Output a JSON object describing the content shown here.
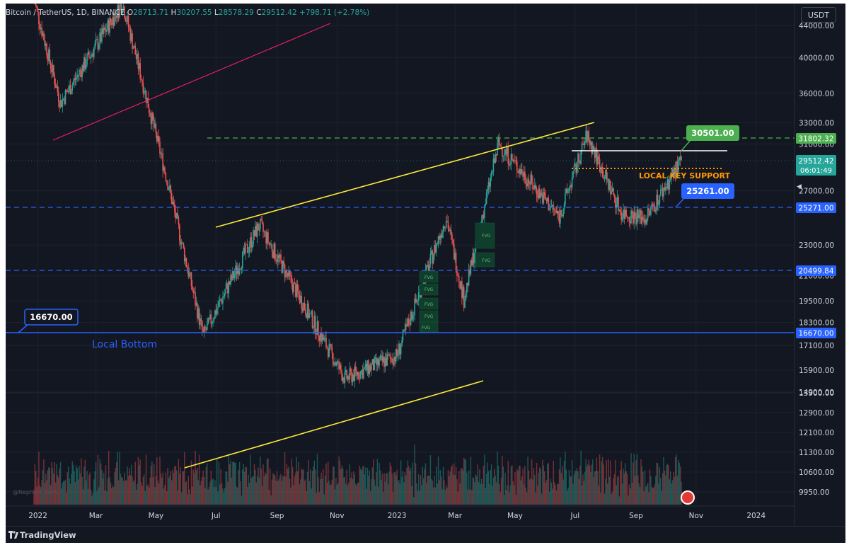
{
  "header": {
    "symbol": "Bitcoin / TetherUS, 1D, BINANCE",
    "o_label": "O",
    "o_value": "28713.71",
    "h_label": "H",
    "h_value": "30207.55",
    "l_label": "L",
    "l_value": "28578.29",
    "c_label": "C",
    "c_value": "29512.42",
    "change": "+798.71 (+2.78%)"
  },
  "currency_button": "USDT",
  "footer": {
    "brand": "TradingView"
  },
  "watermark": "@Nephew_Sam",
  "colors": {
    "background": "#131722",
    "up": "#26a69a",
    "down": "#ef5350",
    "yellow_trend": "#ffeb3b",
    "pink_trend": "#e91e63",
    "green_level": "#4caf50",
    "blue_level": "#2962ff",
    "orange_support": "#ff9800"
  },
  "chart_data": {
    "type": "candlestick",
    "y_axis": {
      "ticks": [
        "44000.00",
        "40000.00",
        "36000.00",
        "33000.00",
        "31000.00",
        "27000.00",
        "23000.00",
        "21000.00",
        "19500.00",
        "18300.00",
        "17100.00",
        "15900.00",
        "14900.00",
        "13900.00",
        "12900.00",
        "12100.00",
        "11300.00",
        "10600.00",
        "9950.00"
      ],
      "scale": "log"
    },
    "x_axis": {
      "ticks": [
        "2022",
        "Mar",
        "May",
        "Jul",
        "Sep",
        "Nov",
        "2023",
        "Mar",
        "May",
        "Jul",
        "Sep",
        "Nov",
        "2024"
      ]
    },
    "price_labels": [
      {
        "text": "31802.32",
        "color": "#4caf50"
      },
      {
        "text": "29512.42",
        "sub": "06:01:49",
        "color": "#26a69a"
      },
      {
        "text": "25271.00",
        "color": "#2962ff"
      },
      {
        "text": "20499.84",
        "color": "#2962ff"
      },
      {
        "text": "16670.00",
        "color": "#2962ff"
      }
    ],
    "levels": [
      {
        "value": 31802.32,
        "style": "dashed",
        "color": "#4caf50"
      },
      {
        "value": 25271.0,
        "style": "dashed",
        "color": "#2962ff"
      },
      {
        "value": 20499.84,
        "style": "dashed",
        "color": "#2962ff"
      },
      {
        "value": 16670.0,
        "style": "solid",
        "color": "#2962ff"
      }
    ],
    "callouts": [
      {
        "text": "30501.00",
        "color": "#4caf50"
      },
      {
        "text": "25261.00",
        "color": "#2962ff"
      },
      {
        "text": "16670.00",
        "color": "#2962ff"
      }
    ],
    "annotations": {
      "local_bottom": "Local Bottom",
      "local_key_support": "LOCAL KEY SUPPORT",
      "fvg_label": "FVG"
    },
    "key_prices": [
      {
        "date": "2021-12-28",
        "price": 47500
      },
      {
        "date": "2022-01-24",
        "price": 35000
      },
      {
        "date": "2022-03-28",
        "price": 47000
      },
      {
        "date": "2022-05-12",
        "price": 28000
      },
      {
        "date": "2022-06-18",
        "price": 17600
      },
      {
        "date": "2022-08-14",
        "price": 24400
      },
      {
        "date": "2022-11-09",
        "price": 15500
      },
      {
        "date": "2023-01-01",
        "price": 16600
      },
      {
        "date": "2023-02-20",
        "price": 25000
      },
      {
        "date": "2023-03-10",
        "price": 19600
      },
      {
        "date": "2023-04-14",
        "price": 31000
      },
      {
        "date": "2023-06-15",
        "price": 25000
      },
      {
        "date": "2023-07-13",
        "price": 31800
      },
      {
        "date": "2023-08-17",
        "price": 25300
      },
      {
        "date": "2023-09-11",
        "price": 24900
      },
      {
        "date": "2023-10-17",
        "price": 29512
      }
    ]
  }
}
